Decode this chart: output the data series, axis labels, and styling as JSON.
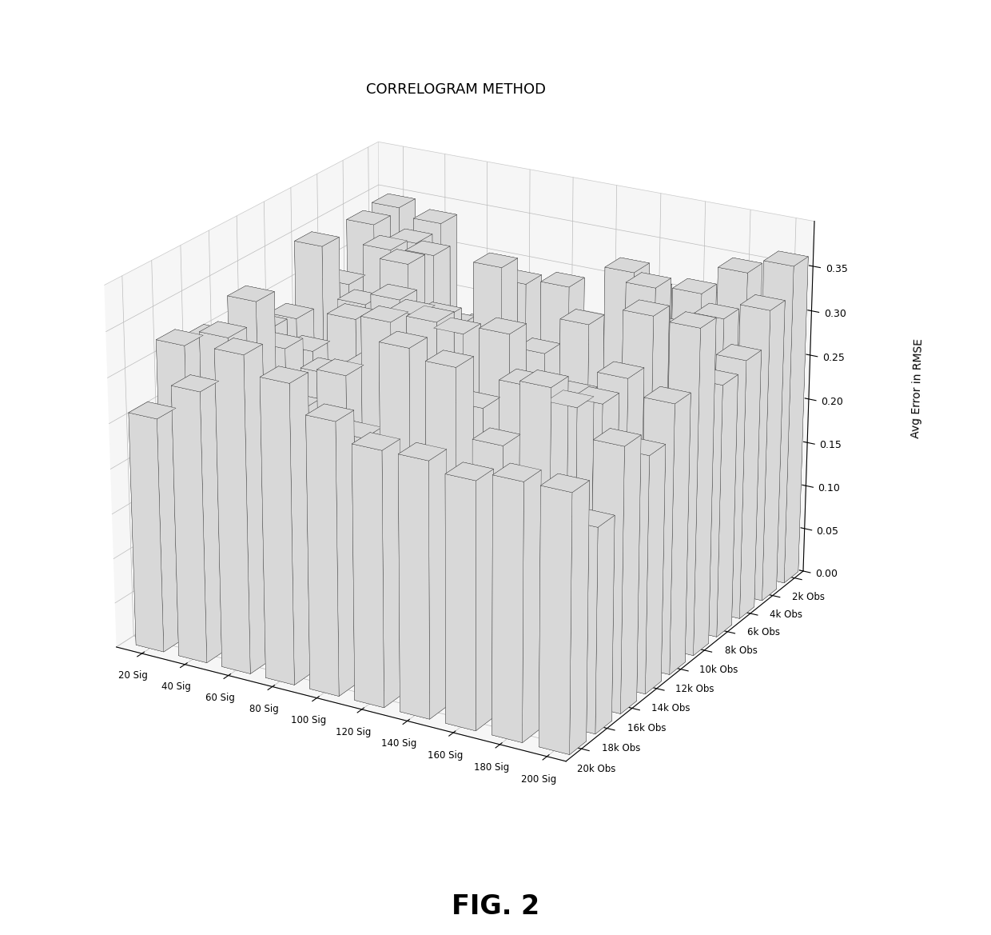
{
  "title": "CORRELOGRAM METHOD",
  "zlabel": "Avg Error in RMSE",
  "sig_labels": [
    "20 Sig",
    "40 Sig",
    "60 Sig",
    "80 Sig",
    "100 Sig",
    "120 Sig",
    "140 Sig",
    "160 Sig",
    "180 Sig",
    "200 Sig"
  ],
  "obs_labels": [
    "20k Obs",
    "18k Obs",
    "16k Obs",
    "14k Obs",
    "12k Obs",
    "10k Obs",
    "8k Obs",
    "6k Obs",
    "4k Obs",
    "2k Obs"
  ],
  "n_sig": 10,
  "n_obs": 10,
  "zlim": [
    0,
    0.4
  ],
  "zticks": [
    0,
    0.05,
    0.1,
    0.15,
    0.2,
    0.25,
    0.3,
    0.35
  ],
  "fig_caption": "FIG. 2",
  "bar_color_face": "#d8d8d8",
  "bar_color_edge": "#222222",
  "background_color": "#ffffff",
  "pane_color": "#eeeeee",
  "elev": 22,
  "azim": -60,
  "figsize": [
    12.4,
    11.69
  ],
  "dpi": 100
}
